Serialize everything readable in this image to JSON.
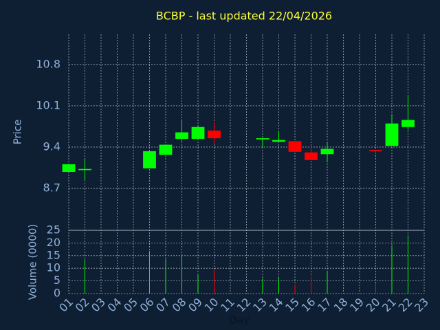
{
  "chart_data": {
    "type": "candlestick",
    "title": "BCBP - last updated 22/04/2026",
    "y_label": "Price",
    "volume_label": "Volume (0000)",
    "x_label": "Day",
    "categories": [
      "01",
      "02",
      "03",
      "04",
      "05",
      "06",
      "07",
      "08",
      "09",
      "10",
      "11",
      "12",
      "13",
      "14",
      "15",
      "16",
      "17",
      "18",
      "19",
      "20",
      "21",
      "22",
      "23"
    ],
    "open": [
      8.98,
      9.01,
      null,
      null,
      null,
      9.04,
      9.27,
      9.54,
      9.54,
      9.68,
      null,
      null,
      9.53,
      9.49,
      9.5,
      9.31,
      9.28,
      null,
      null,
      9.35,
      9.42,
      9.74,
      null
    ],
    "high": [
      9.11,
      9.19,
      null,
      null,
      null,
      9.33,
      9.44,
      9.87,
      9.76,
      9.82,
      null,
      null,
      9.55,
      9.68,
      9.5,
      9.4,
      9.48,
      null,
      null,
      9.35,
      9.95,
      10.26,
      null
    ],
    "low": [
      8.98,
      8.84,
      null,
      null,
      null,
      9.04,
      9.27,
      9.5,
      9.54,
      9.45,
      null,
      null,
      9.4,
      9.49,
      9.32,
      9.18,
      9.14,
      null,
      null,
      9.27,
      9.42,
      9.69,
      null
    ],
    "close": [
      9.11,
      9.03,
      null,
      null,
      null,
      9.33,
      9.44,
      9.65,
      9.74,
      9.55,
      null,
      null,
      9.55,
      9.52,
      9.32,
      9.18,
      9.37,
      null,
      null,
      9.33,
      9.8,
      9.86,
      null
    ],
    "volume": [
      null,
      13.6,
      null,
      null,
      null,
      16.8,
      13.6,
      15,
      7.3,
      9.2,
      null,
      null,
      6,
      6.5,
      3.5,
      6.8,
      9,
      null,
      null,
      4,
      19,
      22.5,
      null
    ],
    "up_color": "#00ff00",
    "down_color": "#ff0000",
    "ylim": [
      7.99,
      11.31
    ],
    "yticks": [
      8.7,
      9.4,
      10.1,
      10.8
    ],
    "volume_ylim": [
      0,
      25
    ],
    "volume_yticks": [
      0,
      5,
      10,
      15,
      20,
      25
    ],
    "grid": true
  }
}
